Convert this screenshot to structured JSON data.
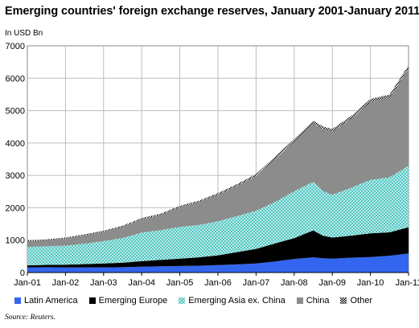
{
  "chart_data": {
    "type": "area",
    "stacked": true,
    "title": "Emerging countries' foreign exchange reserves, January 2001-January 2011",
    "ylabel": "In USD Bn",
    "source": "Source: Reuters.",
    "ylim": [
      0,
      7000
    ],
    "yticks": [
      0,
      1000,
      2000,
      3000,
      4000,
      5000,
      6000,
      7000
    ],
    "yticklabels": [
      "0",
      "1000",
      "2000",
      "3000",
      "4000",
      "5000",
      "6000",
      "7000"
    ],
    "xlim": [
      "2001-01",
      "2011-01"
    ],
    "xticklabels": [
      "Jan-01",
      "Jan-02",
      "Jan-03",
      "Jan-04",
      "Jan-05",
      "Jan-06",
      "Jan-07",
      "Jan-08",
      "Jan-09",
      "Jan-10",
      "Jan-11"
    ],
    "grid": true,
    "legend_position": "bottom",
    "x": [
      "2001-01",
      "2001-07",
      "2002-01",
      "2002-07",
      "2003-01",
      "2003-07",
      "2004-01",
      "2004-07",
      "2005-01",
      "2005-07",
      "2006-01",
      "2006-07",
      "2007-01",
      "2007-07",
      "2008-01",
      "2008-07",
      "2008-10",
      "2009-01",
      "2009-07",
      "2010-01",
      "2010-07",
      "2011-01"
    ],
    "series": [
      {
        "name": "Latin America",
        "color": "#3366ee",
        "values": [
          160,
          165,
          160,
          160,
          160,
          165,
          180,
          190,
          200,
          210,
          230,
          250,
          280,
          340,
          420,
          470,
          440,
          430,
          460,
          480,
          520,
          590
        ]
      },
      {
        "name": "Emerging Europe",
        "color": "#000000",
        "values": [
          60,
          70,
          80,
          100,
          120,
          140,
          170,
          200,
          230,
          260,
          300,
          380,
          450,
          560,
          640,
          830,
          700,
          650,
          680,
          730,
          720,
          810
        ]
      },
      {
        "name": "Emerging Asia ex. China",
        "color": "#5fd3cf",
        "values": [
          570,
          580,
          590,
          630,
          690,
          760,
          880,
          920,
          980,
          1000,
          1050,
          1110,
          1180,
          1280,
          1450,
          1500,
          1380,
          1320,
          1480,
          1650,
          1700,
          1900
        ]
      },
      {
        "name": "China",
        "color": "#8c8c8c",
        "values": [
          170,
          180,
          220,
          260,
          290,
          350,
          410,
          470,
          610,
          710,
          820,
          940,
          1070,
          1330,
          1530,
          1810,
          1910,
          1950,
          2130,
          2400,
          2450,
          3000
        ]
      },
      {
        "name": "Other",
        "color": "#000000",
        "values": [
          30,
          30,
          30,
          30,
          30,
          30,
          40,
          40,
          40,
          40,
          50,
          50,
          60,
          70,
          80,
          80,
          80,
          80,
          90,
          100,
          100,
          100
        ]
      }
    ]
  }
}
